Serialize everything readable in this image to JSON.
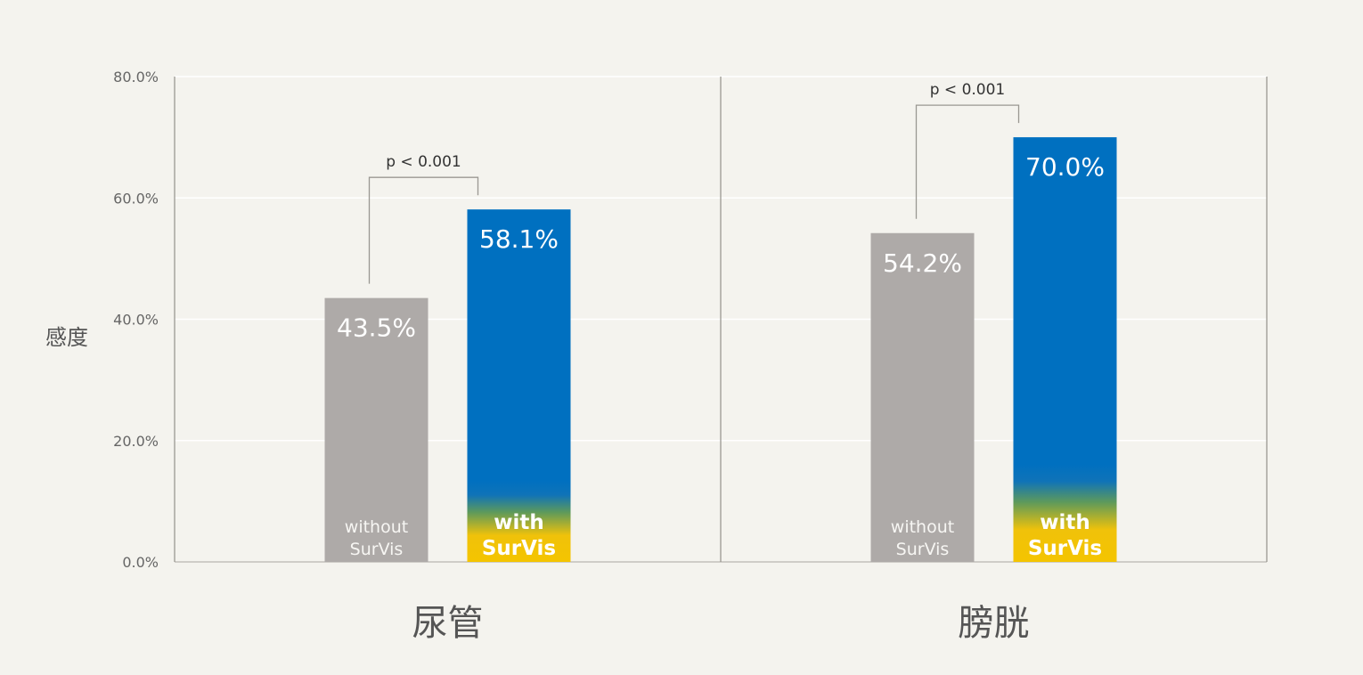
{
  "chart_data": {
    "type": "bar",
    "ylabel": "感度",
    "ylim": [
      0,
      80
    ],
    "y_ticks": [
      "0.0%",
      "20.0%",
      "40.0%",
      "60.0%",
      "80.0%"
    ],
    "y_tick_values": [
      0,
      20,
      40,
      60,
      80
    ],
    "grid": true,
    "categories": [
      "尿管",
      "膀胱"
    ],
    "series": [
      {
        "key": "without",
        "label_lines": [
          "without",
          "SurVis"
        ],
        "color": "#aeaaa8",
        "values": [
          43.5,
          54.2
        ],
        "labels": [
          "43.5%",
          "54.2%"
        ]
      },
      {
        "key": "with",
        "label_lines": [
          "with",
          "SurVis"
        ],
        "color": "#0070c0",
        "accent": "#f0c20a",
        "values": [
          58.1,
          70.0
        ],
        "labels": [
          "58.1%",
          "70.0%"
        ]
      }
    ],
    "annotations": [
      {
        "category": 0,
        "text": "p < 0.001"
      },
      {
        "category": 1,
        "text": "p < 0.001"
      }
    ]
  }
}
